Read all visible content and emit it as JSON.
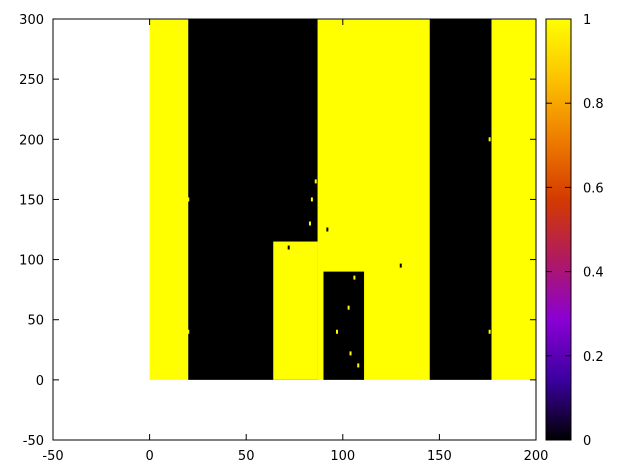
{
  "chart_data": {
    "type": "heatmap",
    "title": "",
    "xlabel": "",
    "ylabel": "",
    "xlim": [
      -50,
      200
    ],
    "ylim": [
      -50,
      300
    ],
    "xticks": [
      -50,
      0,
      50,
      100,
      150,
      200
    ],
    "yticks": [
      -50,
      0,
      50,
      100,
      150,
      200,
      250,
      300
    ],
    "data_extent": {
      "x": [
        0,
        200
      ],
      "y": [
        0,
        300
      ]
    },
    "grid": false,
    "colorbar": {
      "range": [
        0,
        1
      ],
      "ticks": [
        0,
        0.2,
        0.4,
        0.6,
        0.8,
        1
      ],
      "tick_labels": [
        "0",
        "0.2",
        "0.4",
        "0.6",
        "0.8",
        "1"
      ],
      "palette": [
        "#000000",
        "#3b00a0",
        "#8a00d4",
        "#b01a60",
        "#d33a00",
        "#ef7d00",
        "#fcc200",
        "#ffff00"
      ]
    },
    "value_colors": {
      "0": "#000000",
      "1": "#ffff00"
    },
    "vertical_bands": [
      {
        "x": [
          0,
          20
        ],
        "value": 1
      },
      {
        "x": [
          20,
          87
        ],
        "value": 0
      },
      {
        "x": [
          87,
          145
        ],
        "value": 1
      },
      {
        "x": [
          145,
          177
        ],
        "value": 0
      },
      {
        "x": [
          177,
          200
        ],
        "value": 1
      }
    ],
    "mixed_regions": [
      {
        "x": [
          64,
          87
        ],
        "y": [
          0,
          115
        ],
        "value": 1
      },
      {
        "x": [
          90,
          111
        ],
        "y": [
          0,
          90
        ],
        "value": 0
      }
    ],
    "speckles": [
      {
        "x": 72,
        "y": 110,
        "value": 0
      },
      {
        "x": 75,
        "y": 95,
        "value": 1
      },
      {
        "x": 78,
        "y": 100,
        "value": 1
      },
      {
        "x": 80,
        "y": 88,
        "value": 1
      },
      {
        "x": 83,
        "y": 130,
        "value": 1
      },
      {
        "x": 84,
        "y": 150,
        "value": 1
      },
      {
        "x": 86,
        "y": 165,
        "value": 1
      },
      {
        "x": 92,
        "y": 125,
        "value": 0
      },
      {
        "x": 95,
        "y": 105,
        "value": 1
      },
      {
        "x": 97,
        "y": 40,
        "value": 1
      },
      {
        "x": 100,
        "y": 98,
        "value": 1
      },
      {
        "x": 103,
        "y": 60,
        "value": 1
      },
      {
        "x": 104,
        "y": 22,
        "value": 1
      },
      {
        "x": 106,
        "y": 85,
        "value": 1
      },
      {
        "x": 108,
        "y": 12,
        "value": 1
      },
      {
        "x": 110,
        "y": 96,
        "value": 1
      },
      {
        "x": 113,
        "y": 100,
        "value": 1
      },
      {
        "x": 130,
        "y": 95,
        "value": 0
      },
      {
        "x": 20,
        "y": 150,
        "value": 1
      },
      {
        "x": 20,
        "y": 40,
        "value": 1
      },
      {
        "x": 176,
        "y": 200,
        "value": 1
      },
      {
        "x": 176,
        "y": 40,
        "value": 1
      }
    ]
  }
}
